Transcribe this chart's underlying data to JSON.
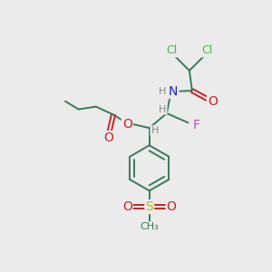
{
  "background_color": "#ebebeb",
  "bond_color": "#3a7a5a",
  "bond_width": 1.4,
  "atom_colors": {
    "Cl": "#44bb44",
    "N": "#2222cc",
    "H": "#888888",
    "O": "#cc2222",
    "F": "#cc44cc",
    "S": "#bbbb00",
    "C": "#3a7a5a"
  },
  "font_size": 9,
  "figsize": [
    3.0,
    3.0
  ],
  "dpi": 100
}
